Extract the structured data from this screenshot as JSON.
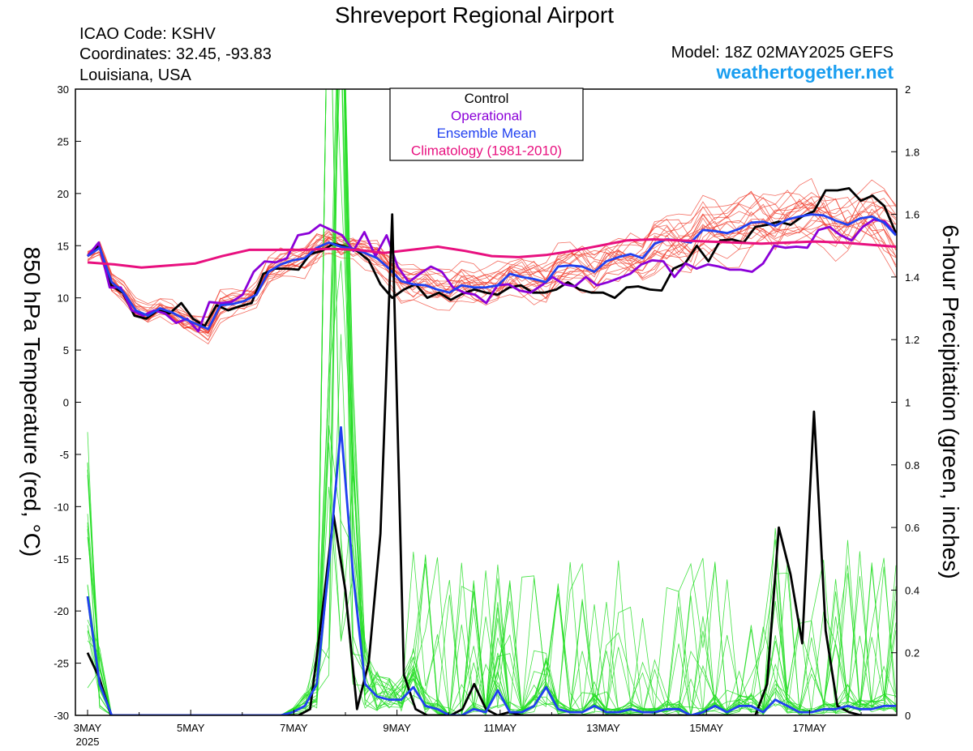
{
  "header": {
    "title": "Shreveport Regional Airport",
    "icao": "ICAO Code: KSHV",
    "coords": "Coordinates: 32.45, -93.83",
    "location": "Louisiana, USA",
    "model": "Model: 18Z 02MAY2025 GEFS",
    "site": "weathertogether.net"
  },
  "chart_data": {
    "type": "line",
    "title": "Shreveport Regional Airport",
    "ylabel": "850 hPa Temperature (red, °C)",
    "y2label": "6-hour Precipitation (green, inches)",
    "ylim": [
      -30,
      30
    ],
    "y2lim": [
      0,
      2
    ],
    "yticks": [
      "30",
      "25",
      "20",
      "15",
      "10",
      "5",
      "0",
      "-5",
      "-10",
      "-15",
      "-20",
      "-25",
      "-30"
    ],
    "y2ticks": [
      "2",
      "1.8",
      "1.6",
      "1.4",
      "1.2",
      "1",
      "0.8",
      "0.6",
      "0.4",
      "0.2",
      "0"
    ],
    "xlim": [
      0,
      63
    ],
    "xticks": [
      {
        "x": 0,
        "label": "3MAY",
        "sub": "2025"
      },
      {
        "x": 8,
        "label": "5MAY"
      },
      {
        "x": 16,
        "label": "7MAY"
      },
      {
        "x": 24,
        "label": "9MAY"
      },
      {
        "x": 32,
        "label": "11MAY"
      },
      {
        "x": 40,
        "label": "13MAY"
      },
      {
        "x": 48,
        "label": "15MAY"
      },
      {
        "x": 56,
        "label": "17MAY"
      }
    ],
    "legend": {
      "position": "top-center",
      "items": [
        {
          "label": "Control",
          "color": "#000000"
        },
        {
          "label": "Operational",
          "color": "#8b00d8"
        },
        {
          "label": "Ensemble Mean",
          "color": "#2040f0"
        },
        {
          "label": "Climatology (1981-2010)",
          "color": "#e8107f"
        }
      ]
    },
    "colors": {
      "member_temp": "#f03a2a",
      "member_precip": "#22dd22",
      "control": "#000000",
      "operational": "#8b00d8",
      "mean": "#2040f0",
      "climatology": "#e8107f"
    },
    "series": [
      {
        "name": "Control",
        "axis": "temp",
        "values": [
          14.0,
          15.0,
          11.2,
          10.5,
          8.3,
          8.0,
          8.8,
          8.5,
          9.5,
          8.0,
          7.3,
          9.3,
          8.8,
          9.2,
          9.5,
          12.3,
          12.8,
          12.8,
          12.7,
          14.2,
          14.5,
          15.2,
          14.9,
          14.5,
          13.6,
          11.3,
          10.0,
          10.8,
          11.3,
          10.0,
          10.5,
          9.8,
          10.4,
          10.8,
          10.5,
          10.3,
          11.0,
          11.2,
          10.5,
          10.5,
          10.8,
          11.5,
          10.8,
          10.5,
          10.5,
          10.0,
          11.0,
          11.1,
          10.8,
          10.7,
          12.8,
          13.3,
          15.0,
          13.5,
          15.5,
          15.6,
          15.3,
          16.8,
          17.0,
          17.3,
          17.0,
          17.8,
          18.3,
          20.3,
          20.3,
          20.5,
          19.3,
          19.8,
          18.8,
          16.2
        ]
      },
      {
        "name": "Operational",
        "axis": "temp",
        "values": [
          14.0,
          15.3,
          11.0,
          11.0,
          8.8,
          8.3,
          8.8,
          8.5,
          7.6,
          8.0,
          6.8,
          9.6,
          9.5,
          9.6,
          10.3,
          12.5,
          13.5,
          13.4,
          13.8,
          16.0,
          16.2,
          17.0,
          16.5,
          16.0,
          14.5,
          16.3,
          14.0,
          16.0,
          13.0,
          11.5,
          12.3,
          13.0,
          12.5,
          11.0,
          10.5,
          10.3,
          9.5,
          11.2,
          11.3,
          10.7,
          10.5,
          11.2,
          12.0,
          11.3,
          11.1,
          12.0,
          11.2,
          11.5,
          11.9,
          12.3,
          13.2,
          13.6,
          13.5,
          12.0,
          13.3,
          12.8,
          13.2,
          13.0,
          12.7,
          12.7,
          12.5,
          13.3,
          15.0,
          14.8,
          14.9,
          14.8,
          16.5,
          16.8,
          16.0,
          15.5,
          16.8,
          17.5,
          17.3,
          16.0
        ]
      },
      {
        "name": "Ensemble Mean",
        "axis": "temp",
        "values": [
          14.0,
          14.8,
          11.5,
          10.5,
          8.8,
          8.3,
          9.0,
          8.6,
          8.0,
          7.5,
          7.0,
          9.3,
          9.4,
          9.7,
          10.3,
          12.5,
          13.2,
          13.6,
          13.8,
          14.8,
          15.3,
          14.9,
          14.7,
          14.3,
          13.8,
          12.8,
          11.6,
          11.3,
          11.2,
          10.8,
          10.5,
          11.2,
          11.0,
          11.0,
          11.2,
          12.3,
          12.0,
          11.8,
          11.5,
          13.0,
          13.1,
          13.0,
          12.5,
          13.5,
          13.9,
          14.2,
          13.8,
          15.2,
          15.6,
          15.5,
          15.3,
          16.5,
          16.4,
          16.2,
          16.6,
          17.2,
          17.3,
          16.9,
          17.5,
          17.8,
          18.0,
          17.9,
          17.4,
          17.0,
          17.6,
          17.8,
          17.2,
          16.0
        ]
      },
      {
        "name": "Climatology (1981-2010)",
        "axis": "temp",
        "values": [
          13.4,
          13.2,
          12.9,
          13.1,
          13.3,
          14.0,
          14.6,
          14.6,
          14.6,
          14.7,
          14.6,
          14.3,
          14.6,
          14.9,
          14.5,
          14.0,
          13.9,
          14.1,
          14.5,
          15.0,
          15.5,
          15.6,
          15.5,
          15.4,
          15.3,
          15.2,
          15.3,
          15.4,
          15.3,
          15.1,
          14.9
        ]
      },
      {
        "name": "Control precip",
        "axis": "precip",
        "values": [
          0.2,
          0.12,
          0,
          0,
          0,
          0,
          0,
          0,
          0,
          0,
          0,
          0,
          0,
          0,
          0,
          0,
          0,
          0,
          0,
          0.02,
          0.32,
          0.64,
          0.4,
          0.02,
          0.17,
          0.58,
          1.6,
          0.13,
          0.02,
          0,
          0,
          0,
          0.02,
          0.1,
          0.02,
          0,
          0.01,
          0,
          0,
          0,
          0,
          0,
          0,
          0,
          0,
          0,
          0,
          0,
          0,
          0,
          0,
          0,
          0,
          0,
          0,
          0,
          0,
          0,
          0.1,
          0.6,
          0.45,
          0.23,
          0.97,
          0.27,
          0.03,
          0.01,
          0,
          0,
          0,
          0
        ]
      },
      {
        "name": "Mean precip",
        "axis": "precip",
        "values": [
          0.38,
          0.1,
          0,
          0,
          0,
          0,
          0,
          0,
          0,
          0,
          0,
          0,
          0,
          0,
          0,
          0,
          0,
          0.01,
          0.03,
          0.1,
          0.48,
          0.92,
          0.45,
          0.1,
          0.06,
          0.05,
          0.05,
          0.09,
          0.03,
          0.02,
          0,
          0,
          0.02,
          0.01,
          0.08,
          0.01,
          0.01,
          0.03,
          0.09,
          0.02,
          0.01,
          0.01,
          0.03,
          0.01,
          0.01,
          0.02,
          0.01,
          0.01,
          0.02,
          0.02,
          0,
          0.01,
          0.03,
          0.01,
          0.03,
          0.03,
          0.01,
          0.05,
          0.03,
          0.01,
          0.01,
          0.02,
          0.02,
          0.03,
          0.02,
          0.02,
          0.03,
          0.03
        ]
      }
    ]
  }
}
